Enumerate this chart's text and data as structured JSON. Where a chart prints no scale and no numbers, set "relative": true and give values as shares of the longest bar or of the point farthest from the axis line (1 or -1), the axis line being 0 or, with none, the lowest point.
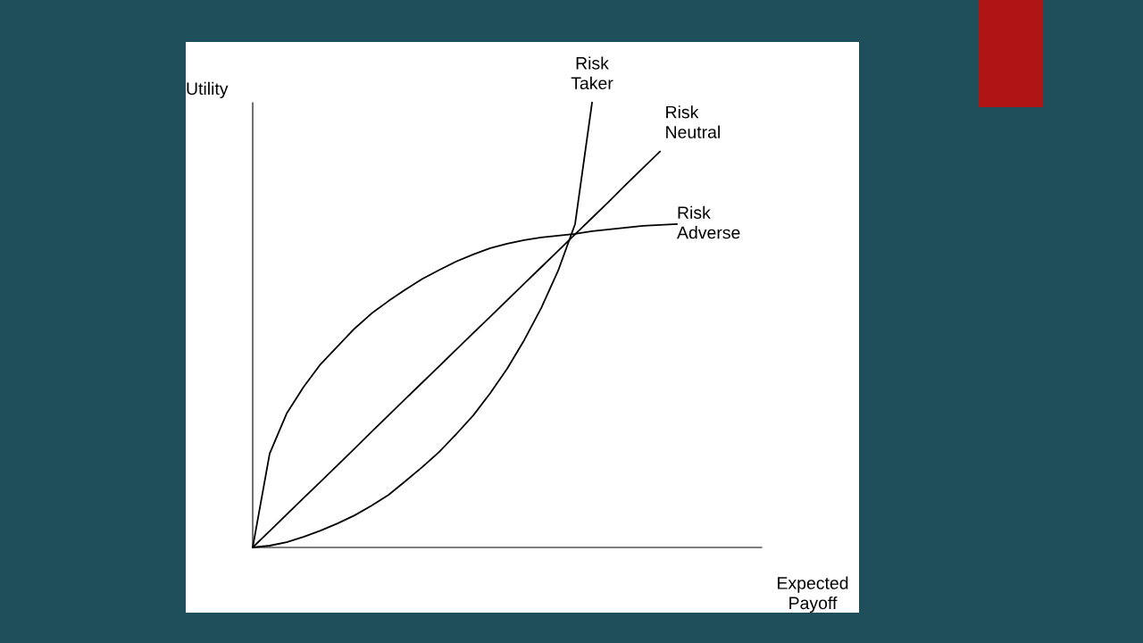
{
  "chart_data": {
    "type": "line",
    "relative": true,
    "xlabel": "Expected\nPayoff",
    "ylabel": "Utility",
    "legend": false,
    "marker": "none",
    "line_style": "solid",
    "categories": [
      null,
      null,
      null,
      null,
      null,
      null,
      null,
      null,
      null,
      null,
      null,
      null,
      null,
      null,
      null,
      null,
      null,
      null,
      null,
      null,
      null,
      null,
      null,
      null,
      null,
      null,
      null,
      null,
      null,
      null,
      null
    ],
    "series": [
      {
        "name": "Risk\nTaker",
        "color": "#000000",
        "values": [
          0,
          0.004,
          0.012,
          0.024,
          0.038,
          0.054,
          0.072,
          0.094,
          0.118,
          0.149,
          0.181,
          0.215,
          0.255,
          0.297,
          0.347,
          0.402,
          0.466,
          0.538,
          0.622,
          0.727,
          1.0,
          null,
          null,
          null,
          null,
          null,
          null,
          null,
          null,
          null,
          null
        ]
      },
      {
        "name": "Risk\nNeutral",
        "color": "#000000",
        "values": [
          0,
          0.037,
          0.074,
          0.111,
          0.148,
          0.185,
          0.222,
          0.26,
          0.297,
          0.334,
          0.371,
          0.408,
          0.445,
          0.482,
          0.519,
          0.556,
          0.593,
          0.63,
          0.667,
          0.704,
          0.741,
          0.778,
          0.816,
          0.853,
          0.89,
          null,
          null,
          null,
          null,
          null,
          null
        ]
      },
      {
        "name": "Risk\nAdverse",
        "color": "#000000",
        "values": [
          0,
          0.211,
          0.301,
          0.361,
          0.412,
          0.452,
          0.492,
          0.526,
          0.554,
          0.58,
          0.604,
          0.624,
          0.643,
          0.659,
          0.673,
          0.683,
          0.691,
          0.697,
          0.701,
          0.705,
          0.711,
          0.715,
          0.719,
          0.723,
          0.725,
          0.727,
          null,
          null,
          null,
          null,
          null
        ]
      }
    ]
  }
}
